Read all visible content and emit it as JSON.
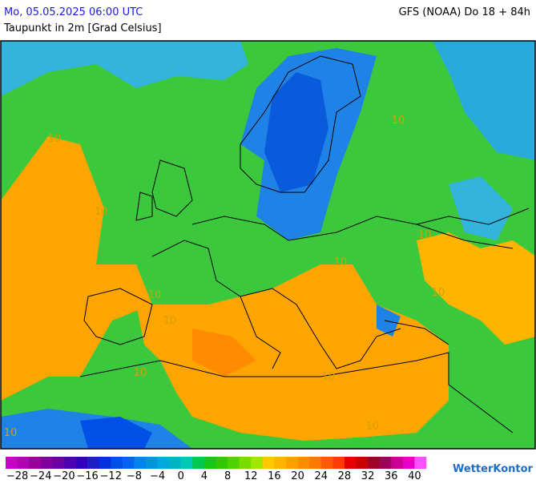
{
  "header": {
    "datetime": "Mo, 05.05.2025 06:00 UTC",
    "model": "GFS (NOAA) Do 18 + 84h",
    "parameter": "Taupunkt in 2m [Grad Celsius]"
  },
  "map": {
    "contour_labels": [
      "10",
      "10",
      "10",
      "10",
      "10",
      "10",
      "10",
      "10",
      "10",
      "10",
      "10",
      "10"
    ]
  },
  "legend": {
    "colors": [
      "#c800c8",
      "#b400b4",
      "#9b009b",
      "#8200a0",
      "#6e00aa",
      "#5000b4",
      "#3200be",
      "#1e1ec8",
      "#0032dc",
      "#0050e6",
      "#0064f0",
      "#0082f0",
      "#0096dc",
      "#00aadc",
      "#00b4c8",
      "#00c8b4",
      "#00c850",
      "#14c814",
      "#32c800",
      "#50d200",
      "#78dc00",
      "#a0e600",
      "#ffc800",
      "#ffb400",
      "#ffa000",
      "#ff8c00",
      "#ff7800",
      "#ff5a00",
      "#ff3c00",
      "#e60000",
      "#c80000",
      "#a00028",
      "#a0005a",
      "#c80096",
      "#e600c8",
      "#ff50ff"
    ],
    "ticks": [
      "−28",
      "−24",
      "−20",
      "−16",
      "−12",
      "−8",
      "−4",
      "0",
      "4",
      "8",
      "12",
      "16",
      "20",
      "24",
      "28",
      "32",
      "36",
      "40"
    ]
  },
  "brand": "WetterKontor"
}
